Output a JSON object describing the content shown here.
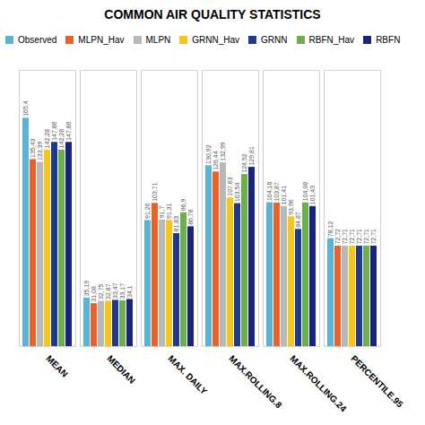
{
  "chart_data": {
    "type": "bar",
    "title": "COMMON AIR QUALITY STATISTICS",
    "categories": [
      "MEAN",
      "MEDIAN",
      "MAX. DAILY",
      "MAX.ROLLING.8",
      "MAX.ROLLING.24",
      "PERCENTILE.95"
    ],
    "series": [
      {
        "name": "Observed",
        "color": "#5ab4d6",
        "values": [
          165.4,
          35.19,
          91.26,
          130.92,
          104.16,
          78.12
        ],
        "value_labels": [
          "165,4",
          "35,19",
          "91,26",
          "130,92",
          "104,16",
          "78,12"
        ]
      },
      {
        "name": "MLPN_Hav",
        "color": "#e8622a",
        "values": [
          135.43,
          31.08,
          103.71,
          126.44,
          103.87,
          72.72
        ],
        "value_labels": [
          "135,43",
          "31,08",
          "103,71",
          "126,44",
          "103,87",
          "72,72"
        ]
      },
      {
        "name": "MLPN",
        "color": "#b8b8b8",
        "values": [
          133.39,
          32.75,
          91.7,
          132.99,
          101.41,
          72.71
        ],
        "value_labels": [
          "133,39",
          "32,75",
          "91,7",
          "132,99",
          "101,41",
          "72,71"
        ]
      },
      {
        "name": "GRNN_Hav",
        "color": "#f5c518",
        "values": [
          142.28,
          32.87,
          91.31,
          107.63,
          93.96,
          72.71
        ],
        "value_labels": [
          "142,28",
          "32,87",
          "91,31",
          "107,63",
          "93,96",
          "72,71"
        ]
      },
      {
        "name": "GRNN",
        "color": "#1f3a8f",
        "values": [
          147.86,
          33.47,
          81.83,
          103.54,
          84.87,
          72.71
        ],
        "value_labels": [
          "147,86",
          "33,47",
          "81,83",
          "103,54",
          "84,87",
          "72,71"
        ]
      },
      {
        "name": "RBFN_Hav",
        "color": "#6ab04c",
        "values": [
          142.28,
          33.17,
          96.9,
          124.52,
          104.08,
          72.71
        ],
        "value_labels": [
          "142,28",
          "33,17",
          "96,9",
          "124,52",
          "104,08",
          "72,71"
        ]
      },
      {
        "name": "RBFN",
        "color": "#1a237e",
        "values": [
          147.86,
          34.1,
          86.78,
          129.81,
          101.43,
          72.71
        ],
        "value_labels": [
          "147,86",
          "34,1",
          "86,78",
          "129,81",
          "101,43",
          "72,71"
        ]
      }
    ],
    "ylim": [
      0,
      200
    ],
    "grid": false,
    "tick_labels": "x",
    "data_labels": true,
    "legend": "upper left"
  }
}
